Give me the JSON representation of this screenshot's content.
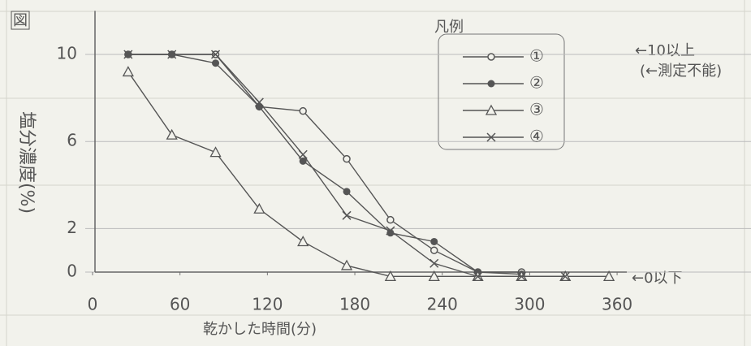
{
  "chart_data": {
    "type": "line",
    "title": "図",
    "y_label": "塩分濃度(%)",
    "x_label": "乾かした時間(分)",
    "legend_title": "凡例",
    "annotations": [
      "←10以上",
      "(←測定不能)",
      "←0以下"
    ],
    "x": [
      30,
      60,
      90,
      120,
      150,
      180,
      210,
      240,
      270,
      300,
      330,
      360
    ],
    "series": [
      {
        "name": "①",
        "color": "#555555",
        "marker": "circle",
        "values": [
          10,
          10,
          10,
          7.6,
          7.4,
          5.2,
          2.4,
          1.0,
          0,
          0,
          null,
          null
        ]
      },
      {
        "name": "②",
        "color": "#555555",
        "marker": "dot",
        "values": [
          10,
          10,
          9.6,
          7.6,
          5.1,
          3.7,
          1.8,
          1.4,
          0,
          -0.1,
          null,
          null
        ]
      },
      {
        "name": "③",
        "color": "#555555",
        "marker": "triangle",
        "values": [
          9.2,
          6.3,
          5.5,
          2.9,
          1.4,
          0.3,
          -0.2,
          -0.2,
          -0.2,
          -0.2,
          -0.2,
          -0.2
        ]
      },
      {
        "name": "④",
        "color": "#555555",
        "marker": "cross",
        "values": [
          10,
          10,
          10,
          7.8,
          5.4,
          2.6,
          1.9,
          0.4,
          -0.2,
          -0.2,
          -0.2,
          null
        ]
      }
    ],
    "xlim": [
      0,
      375
    ],
    "xticks": [
      0,
      60,
      120,
      180,
      240,
      300,
      360
    ],
    "ylim": [
      -0.5,
      12
    ],
    "yticks": [
      0,
      2,
      6,
      10
    ],
    "grid": true
  }
}
